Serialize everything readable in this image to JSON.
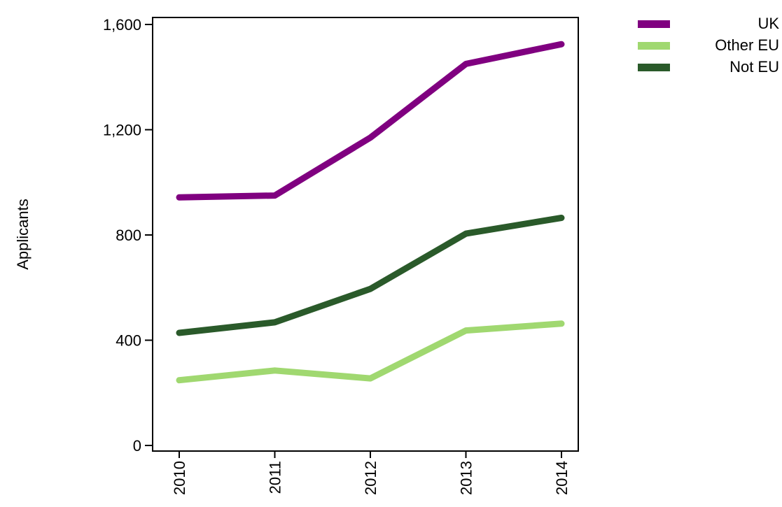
{
  "chart_data": {
    "type": "line",
    "title": "",
    "xlabel": "",
    "ylabel": "Applicants",
    "x": [
      "2010",
      "2011",
      "2012",
      "2013",
      "2014"
    ],
    "ylim": [
      0,
      1600
    ],
    "yticks": [
      0,
      400,
      800,
      1200,
      1600
    ],
    "ytick_labels": [
      "0",
      "400",
      "800",
      "1,200",
      "1,600"
    ],
    "grid": false,
    "legend_position": "top-right",
    "series": [
      {
        "name": "UK",
        "color": "#800080",
        "values": [
          943,
          950,
          1170,
          1450,
          1525
        ]
      },
      {
        "name": "Other EU",
        "color": "#a0d870",
        "values": [
          248,
          285,
          255,
          437,
          463
        ]
      },
      {
        "name": "Not EU",
        "color": "#2a5a2a",
        "values": [
          428,
          468,
          595,
          805,
          865
        ]
      }
    ]
  }
}
